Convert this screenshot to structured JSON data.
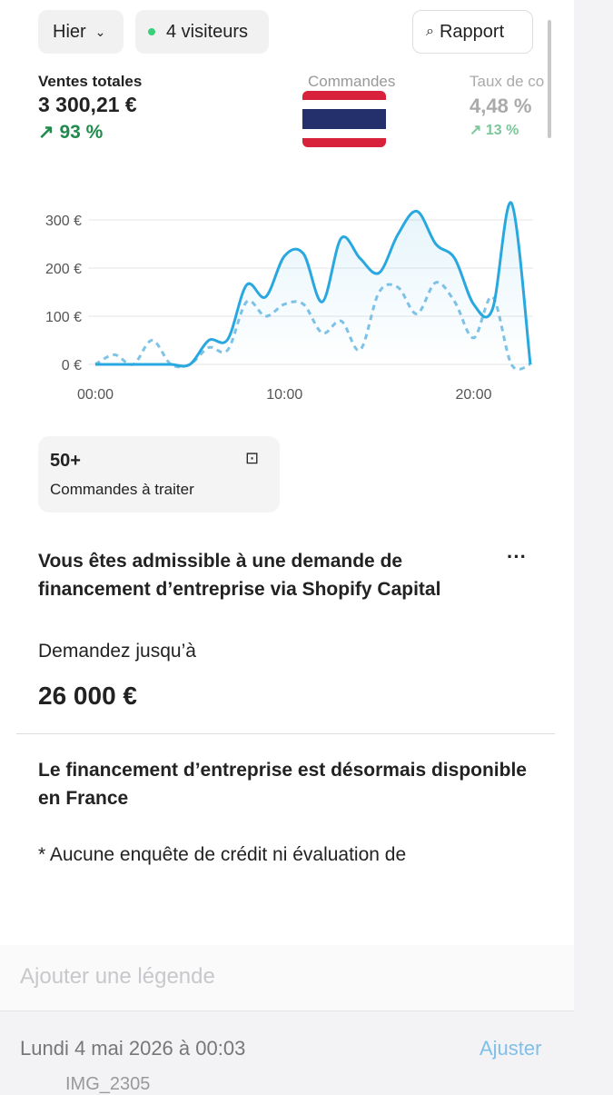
{
  "toolbar": {
    "period": "Hier",
    "visitors": "4 visiteurs",
    "report": "Rapport"
  },
  "metrics": [
    {
      "label": "Ventes totales",
      "value": "3 300,21 €",
      "change": "93 %"
    },
    {
      "label": "Commandes"
    },
    {
      "label": "Taux de co",
      "value": "4,48 %",
      "change": "13 %"
    }
  ],
  "chart_data": {
    "type": "line",
    "x": [
      0,
      1,
      2,
      3,
      4,
      5,
      6,
      7,
      8,
      9,
      10,
      11,
      12,
      13,
      14,
      15,
      16,
      17,
      18,
      19,
      20,
      21,
      22,
      23
    ],
    "series": [
      {
        "color": "#29a8e0",
        "dash": false,
        "values": [
          0,
          0,
          0,
          0,
          0,
          0,
          50,
          52,
          165,
          140,
          225,
          230,
          130,
          262,
          220,
          190,
          270,
          318,
          250,
          220,
          125,
          115,
          335,
          0
        ]
      },
      {
        "color": "#7fc3e6",
        "dash": true,
        "values": [
          0,
          20,
          0,
          50,
          0,
          0,
          35,
          30,
          130,
          100,
          125,
          125,
          65,
          90,
          30,
          150,
          160,
          105,
          170,
          130,
          55,
          140,
          0,
          0
        ]
      }
    ],
    "xlim": [
      0,
      23
    ],
    "xticks": [
      {
        "value": 0,
        "label": "00:00"
      },
      {
        "value": 10,
        "label": "10:00"
      },
      {
        "value": 20,
        "label": "20:00"
      }
    ],
    "ylim": [
      0,
      300
    ],
    "yticks": [
      {
        "value": 0,
        "label": "0 €"
      },
      {
        "value": 100,
        "label": "100 €"
      },
      {
        "value": 200,
        "label": "200 €"
      },
      {
        "value": 300,
        "label": "300 €"
      }
    ],
    "grid": true
  },
  "orders": {
    "count": "50+",
    "label": "Commandes à traiter"
  },
  "capital": {
    "title": "Vous êtes admissible à une demande de financement d’entreprise via Shopify Capital",
    "prompt": "Demandez jusqu’à",
    "amount": "26 000 €",
    "subtitle": "Le financement d’entreprise est désormais disponible en France",
    "note": "* Aucune enquête de crédit ni évaluation de"
  },
  "photo": {
    "caption_placeholder": "Ajouter une légende",
    "date": "Lundi 4 mai 2026 à 00:03",
    "adjust": "Ajuster",
    "filename": "IMG_2305"
  }
}
